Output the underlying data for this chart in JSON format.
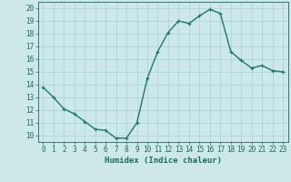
{
  "x": [
    0,
    1,
    2,
    3,
    4,
    5,
    6,
    7,
    8,
    9,
    10,
    11,
    12,
    13,
    14,
    15,
    16,
    17,
    18,
    19,
    20,
    21,
    22,
    23
  ],
  "y": [
    13.8,
    13.0,
    12.1,
    11.7,
    11.1,
    10.5,
    10.4,
    9.8,
    9.8,
    11.0,
    14.5,
    16.6,
    18.1,
    19.0,
    18.8,
    19.4,
    19.9,
    19.6,
    16.6,
    15.9,
    15.3,
    15.5,
    15.1,
    15.0
  ],
  "line_color": "#1a7a6a",
  "marker": "+",
  "marker_size": 3,
  "line_width": 1.0,
  "bg_color": "#cce8e8",
  "grid_color": "#aad0d0",
  "xlabel": "Humidex (Indice chaleur)",
  "xlim": [
    -0.5,
    23.5
  ],
  "ylim": [
    9.5,
    20.5
  ],
  "yticks": [
    10,
    11,
    12,
    13,
    14,
    15,
    16,
    17,
    18,
    19,
    20
  ],
  "xticks": [
    0,
    1,
    2,
    3,
    4,
    5,
    6,
    7,
    8,
    9,
    10,
    11,
    12,
    13,
    14,
    15,
    16,
    17,
    18,
    19,
    20,
    21,
    22,
    23
  ],
  "xlabel_fontsize": 6.5,
  "tick_fontsize": 5.5,
  "axis_color": "#1a6a5a"
}
